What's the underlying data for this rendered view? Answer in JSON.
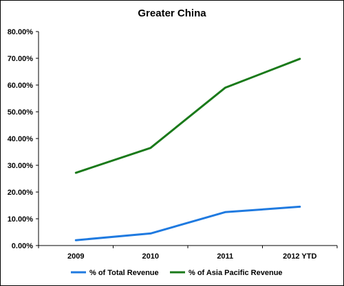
{
  "chart_data": {
    "type": "line",
    "title": "Greater China",
    "xlabel": "",
    "ylabel": "",
    "categories": [
      "2009",
      "2010",
      "2011",
      "2012 YTD"
    ],
    "ylim": [
      0,
      80
    ],
    "yticks": [
      "0.00%",
      "10.00%",
      "20.00%",
      "30.00%",
      "40.00%",
      "50.00%",
      "60.00%",
      "70.00%",
      "80.00%"
    ],
    "grid": false,
    "legend_position": "bottom",
    "series": [
      {
        "name": "% of Total Revenue",
        "color": "#1f7ae0",
        "values": [
          2.0,
          4.5,
          12.5,
          14.5
        ]
      },
      {
        "name": "% of Asia Pacific Revenue",
        "color": "#1a7a1a",
        "values": [
          27.2,
          36.5,
          59.0,
          69.8
        ]
      }
    ]
  }
}
